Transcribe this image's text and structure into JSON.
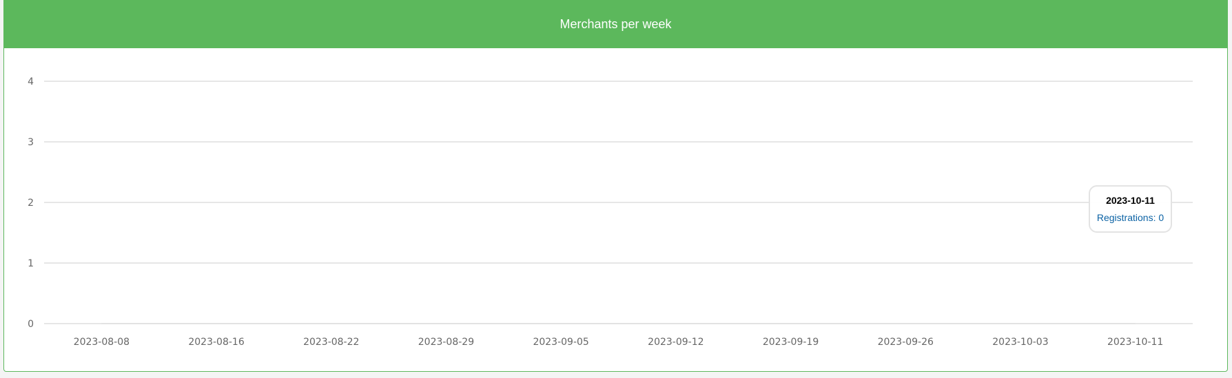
{
  "panel": {
    "title": "Merchants per week",
    "accent_color": "#5cb85c"
  },
  "chart_data": {
    "type": "line",
    "title": "Merchants per week",
    "xlabel": "",
    "ylabel": "",
    "ylim": [
      0,
      4
    ],
    "y_ticks": [
      "0",
      "1",
      "2",
      "3",
      "4"
    ],
    "categories": [
      "2023-08-08",
      "2023-08-16",
      "2023-08-22",
      "2023-08-29",
      "2023-09-05",
      "2023-09-12",
      "2023-09-19",
      "2023-09-26",
      "2023-10-03",
      "2023-10-11"
    ],
    "series": [
      {
        "name": "Registrations",
        "color": "#0b62a4",
        "values": [
          0,
          0,
          0,
          0,
          0,
          0,
          0,
          0,
          0,
          0
        ]
      }
    ],
    "grid": true
  },
  "tooltip": {
    "title": "2023-10-11",
    "text": "Registrations: 0"
  }
}
